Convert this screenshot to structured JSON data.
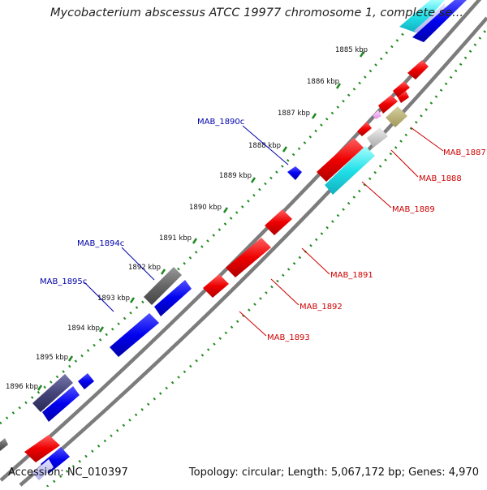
{
  "title": "Mycobacterium abscessus ATCC 19977 chromosome 1, complete se...",
  "footer": {
    "accession": "Accession: NC_010397",
    "summary": "Topology: circular; Length: 5,067,172 bp; Genes: 4,970"
  },
  "colors": {
    "backbone": "#888888",
    "tick": "#228B22",
    "label_forward": "#cc0000",
    "label_reverse": "#0000aa"
  },
  "ticks": [
    {
      "label": "1885 kbp"
    },
    {
      "label": "1886 kbp"
    },
    {
      "label": "1887 kbp"
    },
    {
      "label": "1888 kbp"
    },
    {
      "label": "1889 kbp"
    },
    {
      "label": "1890 kbp"
    },
    {
      "label": "1891 kbp"
    },
    {
      "label": "1892 kbp"
    },
    {
      "label": "1893 kbp"
    },
    {
      "label": "1894 kbp"
    },
    {
      "label": "1895 kbp"
    },
    {
      "label": "1896 kbp"
    }
  ],
  "gene_labels": [
    {
      "name": "MAB_1887",
      "strand": "forward"
    },
    {
      "name": "MAB_1888",
      "strand": "forward"
    },
    {
      "name": "MAB_1889",
      "strand": "forward"
    },
    {
      "name": "MAB_1891",
      "strand": "forward"
    },
    {
      "name": "MAB_1892",
      "strand": "forward"
    },
    {
      "name": "MAB_1893",
      "strand": "forward"
    },
    {
      "name": "MAB_1890c",
      "strand": "reverse"
    },
    {
      "name": "MAB_1894c",
      "strand": "reverse"
    },
    {
      "name": "MAB_1895c",
      "strand": "reverse"
    }
  ]
}
